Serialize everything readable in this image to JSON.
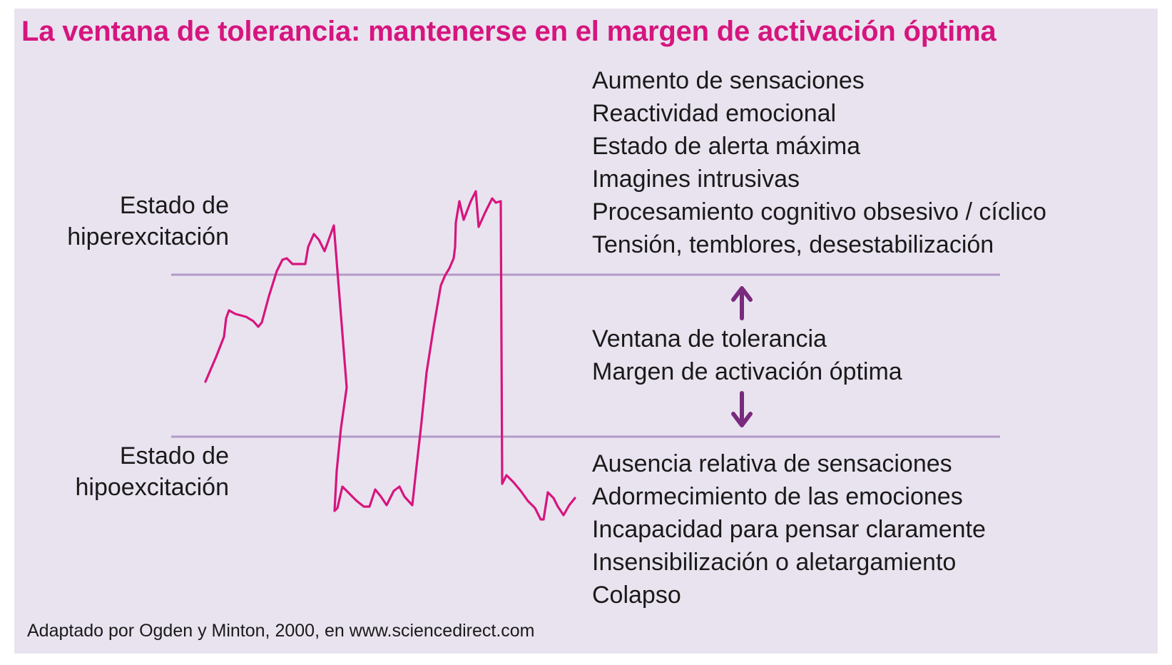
{
  "title": "La ventana de tolerancia: mantenerse en el margen de activación óptima",
  "colors": {
    "accent": "#d6157e",
    "threshold_line": "#b49ac8",
    "arrow": "#7a2a7e",
    "panel": "#e9e3ef"
  },
  "hyper_label": [
    "Estado de",
    "hiperexcitación"
  ],
  "hypo_label": [
    "Estado de",
    "hipoexcitación"
  ],
  "hyper_items": [
    "Aumento de sensaciones",
    "Reactividad emocional",
    "Estado de alerta máxima",
    "Imagines intrusivas",
    "Procesamiento cognitivo obsesivo / cíclico",
    "Tensión, temblores, desestabilización"
  ],
  "window_items": [
    "Ventana de tolerancia",
    "Margen de activación óptima"
  ],
  "hypo_items": [
    "Ausencia relativa de sensaciones",
    "Adormecimiento de las emociones",
    "Incapacidad para pensar claramente",
    "Insensibilización o aletargamiento",
    "Colapso"
  ],
  "icons": [
    "arrow-up-icon",
    "arrow-down-icon"
  ],
  "source": "Adaptado por Ogden y Minton, 2000, en www.sciencedirect.com"
}
